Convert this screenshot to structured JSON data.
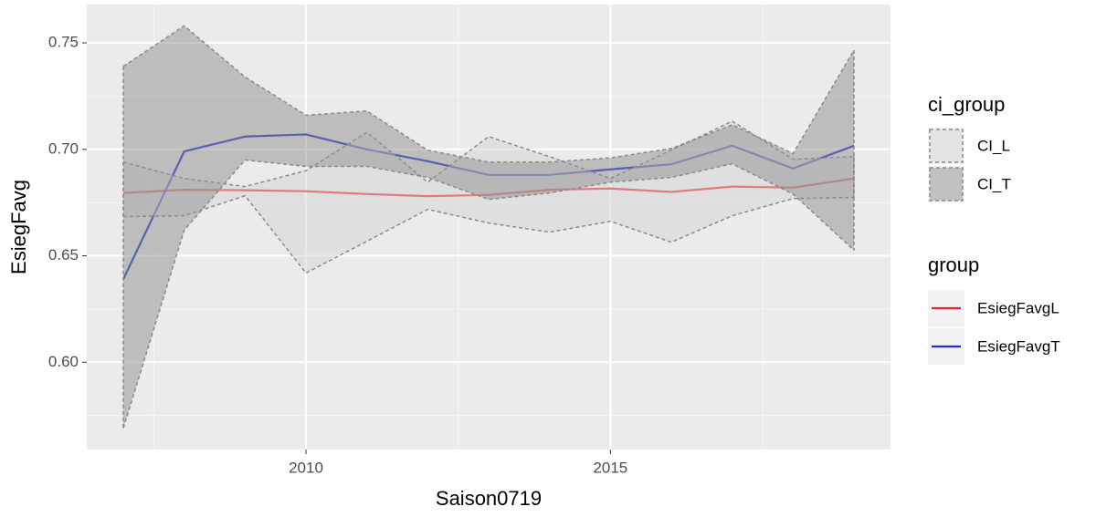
{
  "chart_data": {
    "type": "line",
    "x_label": "Saison0719",
    "y_label": "EsiegFavg",
    "x": [
      2007,
      2008,
      2009,
      2010,
      2011,
      2012,
      2013,
      2014,
      2015,
      2016,
      2017,
      2018,
      2019
    ],
    "xlim": [
      2006.4,
      2019.6
    ],
    "xticks": [
      2010,
      2015
    ],
    "xminor": [
      2007.5,
      2012.5,
      2017.5
    ],
    "ylim": [
      0.559,
      0.768
    ],
    "yticks": [
      {
        "value": 0.6,
        "label": "0.60"
      },
      {
        "value": 0.65,
        "label": "0.65"
      },
      {
        "value": 0.7,
        "label": "0.70"
      },
      {
        "value": 0.75,
        "label": "0.75"
      }
    ],
    "yminor": [
      0.575,
      0.625,
      0.675,
      0.725
    ],
    "grid": true,
    "ribbon_legend_title": "ci_group",
    "ribbons": [
      {
        "name": "CI_L",
        "color": "#d4d4d4",
        "upper": [
          0.694,
          0.6863,
          0.6825,
          0.69,
          0.708,
          0.6846,
          0.706,
          0.6966,
          0.6863,
          0.6996,
          0.7132,
          0.6953,
          0.6966
        ],
        "lower": [
          0.6684,
          0.6688,
          0.6782,
          0.6419,
          0.6568,
          0.6718,
          0.6654,
          0.6611,
          0.6662,
          0.6564,
          0.6688,
          0.6769,
          0.6774
        ]
      },
      {
        "name": "CI_T",
        "color": "#8f8f8f",
        "upper": [
          0.739,
          0.758,
          0.734,
          0.716,
          0.718,
          0.6996,
          0.694,
          0.694,
          0.696,
          0.7004,
          0.7115,
          0.698,
          0.7466
        ],
        "lower": [
          0.569,
          0.662,
          0.695,
          0.692,
          0.692,
          0.6868,
          0.6765,
          0.6795,
          0.6846,
          0.6868,
          0.6932,
          0.679,
          0.6526
        ]
      }
    ],
    "legend_title": "group",
    "series": [
      {
        "name": "EsiegFavgL",
        "color": "#e8242b",
        "values": [
          0.6795,
          0.681,
          0.6808,
          0.6803,
          0.679,
          0.678,
          0.6786,
          0.681,
          0.6816,
          0.68,
          0.6825,
          0.682,
          0.6863
        ]
      },
      {
        "name": "EsiegFavgT",
        "color": "#1f2fd0",
        "values": [
          0.639,
          0.699,
          0.706,
          0.707,
          0.7,
          0.6944,
          0.688,
          0.688,
          0.6906,
          0.693,
          0.7017,
          0.691,
          0.7017
        ]
      }
    ]
  }
}
